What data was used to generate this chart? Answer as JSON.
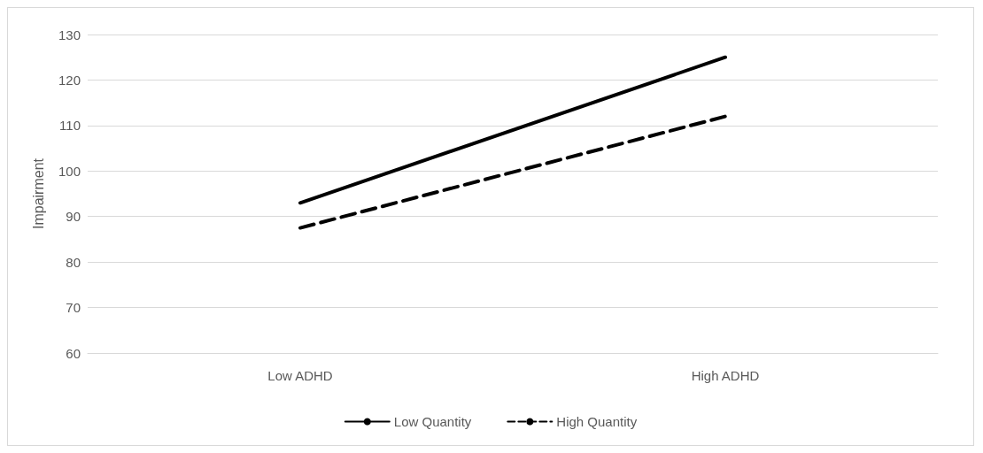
{
  "chart_data": {
    "type": "line",
    "ylabel": "Impairment",
    "categories": [
      "Low ADHD",
      "High ADHD"
    ],
    "series": [
      {
        "name": "Low Quantity",
        "color": "#000000",
        "values": [
          93,
          125
        ],
        "line_style": "solid"
      },
      {
        "name": "High Quantity",
        "color": "#000000",
        "values": [
          87.5,
          112
        ],
        "line_style": "dashed"
      }
    ],
    "ylim": [
      60,
      130
    ],
    "yticks": [
      60,
      70,
      80,
      90,
      100,
      110,
      120,
      130
    ],
    "grid": "y",
    "legend": "bottom",
    "marker": "none"
  }
}
